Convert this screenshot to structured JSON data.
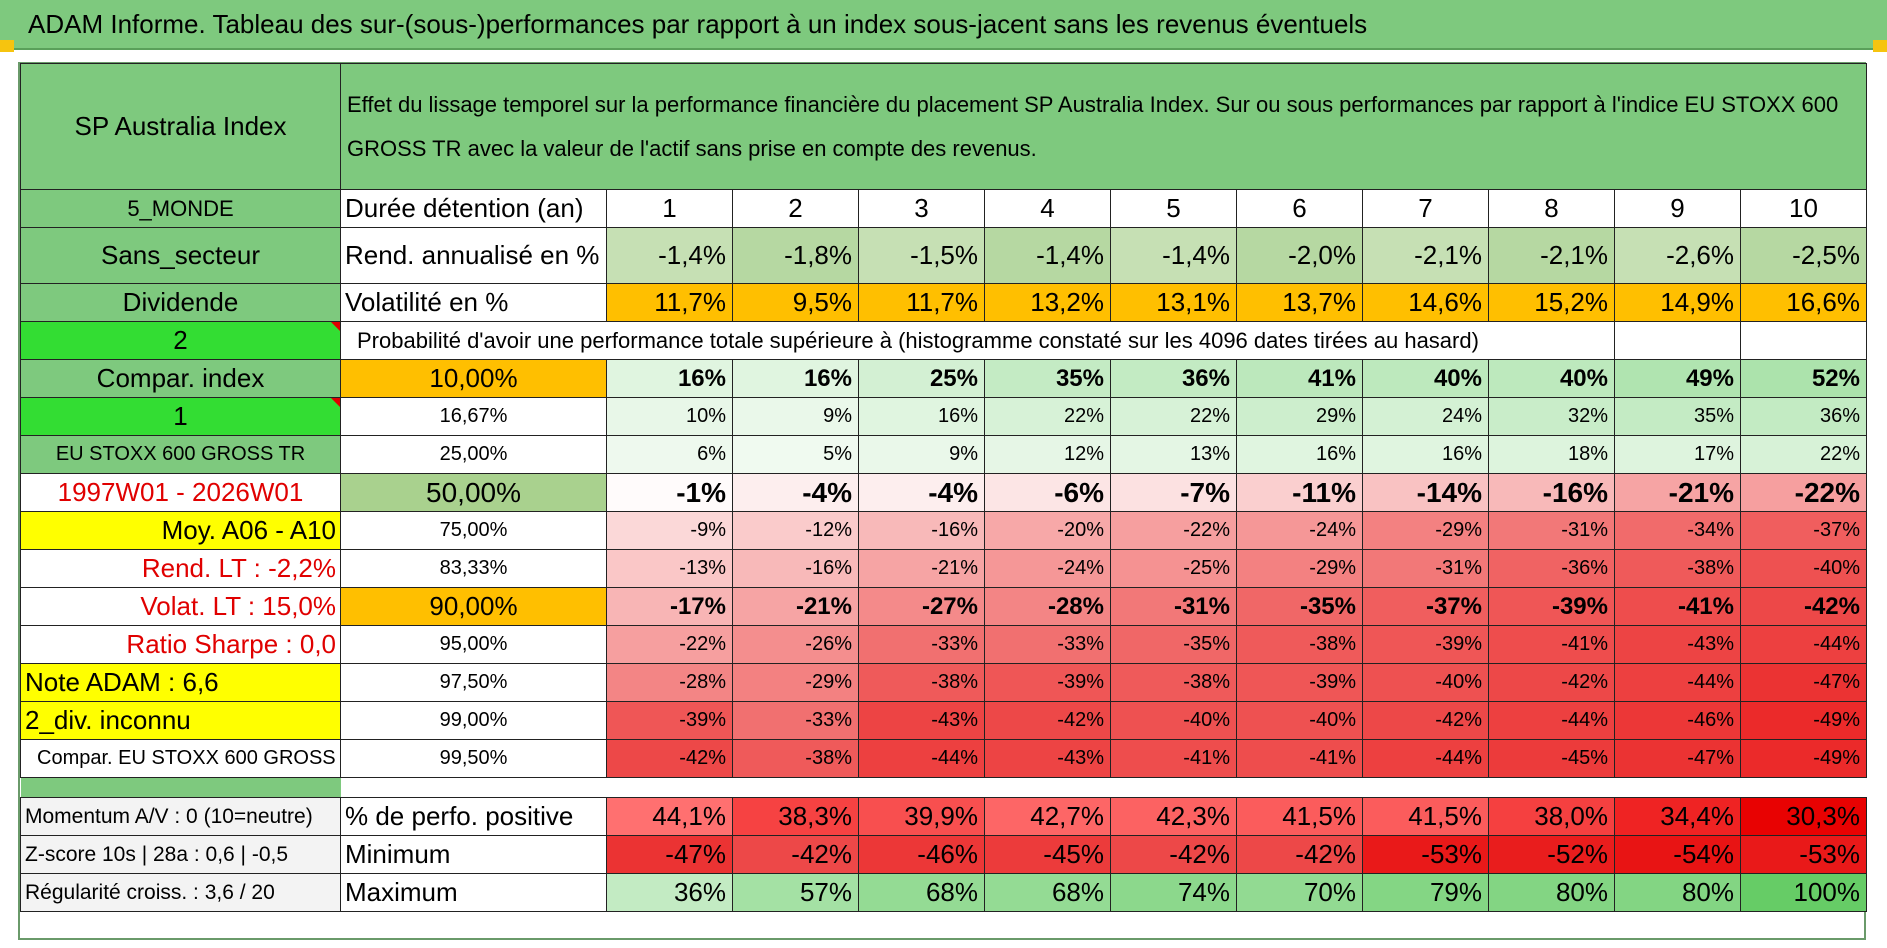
{
  "title": "ADAM Informe. Tableau des sur-(sous-)performances par rapport à un index sous-jacent sans les revenus éventuels",
  "header": {
    "asset": "SP Australia Index",
    "description": "Effet du lissage temporel sur la performance financière du placement SP Australia Index. Sur ou sous performances par rapport à l'indice EU STOXX 600 GROSS TR avec la valeur de l'actif sans prise en compte des revenus."
  },
  "left_labels": {
    "region": "5_MONDE",
    "sector": "Sans_secteur",
    "dividend": "Dividende",
    "code2": "2",
    "compar_index": "Compar. index",
    "code1": "1",
    "index_name": "EU STOXX 600 GROSS TR",
    "period": "1997W01 - 2026W01",
    "moy": "Moy. A06 - A10",
    "rend_lt": "Rend. LT :   -2,2%",
    "volat_lt": "Volat. LT :   15,0%",
    "sharpe": "Ratio Sharpe :    0,0",
    "note": "Note ADAM : 6,6",
    "div": "2_div. inconnu",
    "compar": "Compar. EU STOXX 600 GROSS TR",
    "momentum": "Momentum A/V : 0 (10=neutre)",
    "zscore": "Z-score 10s | 28a : 0,6 | -0,5",
    "regularite": "Régularité croiss. : 3,6 / 20"
  },
  "row_labels": {
    "duree": "Durée détention (an)",
    "rend": "Rend. annualisé en %",
    "vol": "Volatilité en %",
    "proba": "Probabilité d'avoir une performance totale supérieure à (histogramme constaté sur les 4096 dates tirées au hasard)",
    "pos": "% de perfo. positive",
    "min": "Minimum",
    "max": "Maximum"
  },
  "years": [
    "1",
    "2",
    "3",
    "4",
    "5",
    "6",
    "7",
    "8",
    "9",
    "10"
  ],
  "rend": [
    "-1,4%",
    "-1,8%",
    "-1,5%",
    "-1,4%",
    "-1,4%",
    "-2,0%",
    "-2,1%",
    "-2,1%",
    "-2,6%",
    "-2,5%"
  ],
  "vol": [
    "11,7%",
    "9,5%",
    "11,7%",
    "13,2%",
    "13,1%",
    "13,7%",
    "14,6%",
    "15,2%",
    "14,9%",
    "16,6%"
  ],
  "percentile_rows": [
    {
      "p": "10,00%",
      "v": [
        "16%",
        "16%",
        "25%",
        "35%",
        "36%",
        "41%",
        "40%",
        "40%",
        "49%",
        "52%"
      ]
    },
    {
      "p": "16,67%",
      "v": [
        "10%",
        "9%",
        "16%",
        "22%",
        "22%",
        "29%",
        "24%",
        "32%",
        "35%",
        "36%"
      ]
    },
    {
      "p": "25,00%",
      "v": [
        "6%",
        "5%",
        "9%",
        "12%",
        "13%",
        "16%",
        "16%",
        "18%",
        "17%",
        "22%"
      ]
    },
    {
      "p": "50,00%",
      "v": [
        "-1%",
        "-4%",
        "-4%",
        "-6%",
        "-7%",
        "-11%",
        "-14%",
        "-16%",
        "-21%",
        "-22%"
      ]
    },
    {
      "p": "75,00%",
      "v": [
        "-9%",
        "-12%",
        "-16%",
        "-20%",
        "-22%",
        "-24%",
        "-29%",
        "-31%",
        "-34%",
        "-37%"
      ]
    },
    {
      "p": "83,33%",
      "v": [
        "-13%",
        "-16%",
        "-21%",
        "-24%",
        "-25%",
        "-29%",
        "-31%",
        "-36%",
        "-38%",
        "-40%"
      ]
    },
    {
      "p": "90,00%",
      "v": [
        "-17%",
        "-21%",
        "-27%",
        "-28%",
        "-31%",
        "-35%",
        "-37%",
        "-39%",
        "-41%",
        "-42%"
      ]
    },
    {
      "p": "95,00%",
      "v": [
        "-22%",
        "-26%",
        "-33%",
        "-33%",
        "-35%",
        "-38%",
        "-39%",
        "-41%",
        "-43%",
        "-44%"
      ]
    },
    {
      "p": "97,50%",
      "v": [
        "-28%",
        "-29%",
        "-38%",
        "-39%",
        "-38%",
        "-39%",
        "-40%",
        "-42%",
        "-44%",
        "-47%"
      ]
    },
    {
      "p": "99,00%",
      "v": [
        "-39%",
        "-33%",
        "-43%",
        "-42%",
        "-40%",
        "-40%",
        "-42%",
        "-44%",
        "-46%",
        "-49%"
      ]
    },
    {
      "p": "99,50%",
      "v": [
        "-42%",
        "-38%",
        "-44%",
        "-43%",
        "-41%",
        "-41%",
        "-44%",
        "-45%",
        "-47%",
        "-49%"
      ]
    }
  ],
  "pos": [
    "44,1%",
    "38,3%",
    "39,9%",
    "42,7%",
    "42,3%",
    "41,5%",
    "41,5%",
    "38,0%",
    "34,4%",
    "30,3%"
  ],
  "min": [
    "-47%",
    "-42%",
    "-46%",
    "-45%",
    "-42%",
    "-42%",
    "-53%",
    "-52%",
    "-54%",
    "-53%"
  ],
  "max": [
    "36%",
    "57%",
    "68%",
    "68%",
    "74%",
    "70%",
    "79%",
    "80%",
    "80%",
    "100%"
  ],
  "colors": {
    "header_green": "#7ec97e",
    "bright_green": "#33dd33",
    "highlight_yellow": "#ffff00",
    "orange": "#ffbf00",
    "text_red": "#e00000"
  }
}
